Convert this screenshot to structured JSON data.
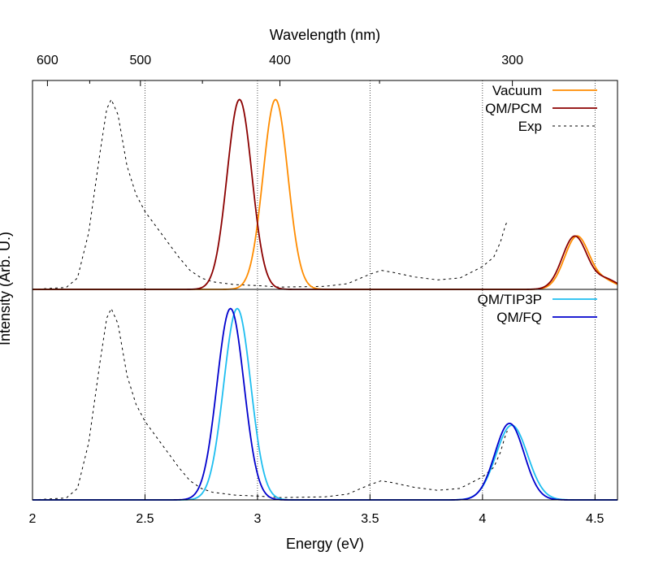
{
  "chart_data": {
    "type": "line",
    "xlabel": "Energy (eV)",
    "x2label": "Wavelength (nm)",
    "ylabel": "Intensity (Arb. U.)",
    "xlim": [
      2.0,
      4.6
    ],
    "x_ticks": [
      2,
      2.5,
      3,
      3.5,
      4,
      4.5
    ],
    "x_tick_labels": [
      "2",
      "2.5",
      "3",
      "3.5",
      "4",
      "4.5"
    ],
    "x2_ticks_nm": [
      600,
      500,
      400,
      300
    ],
    "x2_tick_labels": [
      "600",
      "500",
      "400",
      "300"
    ],
    "x2_minor_ticks_nm": [
      550,
      450,
      350
    ],
    "grid": "x-only, dotted",
    "colors": {
      "vacuum": "#FF8C00",
      "qm_pcm": "#8B0000",
      "exp": "#000000",
      "qm_tip3p": "#1EBEF0",
      "qm_fq": "#0000CD"
    },
    "panels": [
      {
        "legend_position": "top-right",
        "ylim": [
          0,
          1.1
        ],
        "series": [
          {
            "name": "Vacuum",
            "color_key": "vacuum",
            "style": "solid",
            "peaks": [
              {
                "center": 3.08,
                "width": 0.055,
                "height": 1.0
              },
              {
                "center": 4.42,
                "width": 0.055,
                "height": 0.28
              },
              {
                "center": 4.55,
                "width": 0.05,
                "height": 0.04
              }
            ]
          },
          {
            "name": "QM/PCM",
            "color_key": "qm_pcm",
            "style": "solid",
            "peaks": [
              {
                "center": 2.92,
                "width": 0.055,
                "height": 1.0
              },
              {
                "center": 4.41,
                "width": 0.055,
                "height": 0.28
              },
              {
                "center": 4.55,
                "width": 0.05,
                "height": 0.05
              }
            ]
          },
          {
            "name": "Exp",
            "color_key": "exp",
            "style": "dashed",
            "x": [
              2.0,
              2.15,
              2.2,
              2.25,
              2.3,
              2.33,
              2.35,
              2.38,
              2.42,
              2.46,
              2.5,
              2.55,
              2.6,
              2.65,
              2.7,
              2.75,
              2.8,
              2.9,
              3.0,
              3.1,
              3.2,
              3.3,
              3.4,
              3.5,
              3.55,
              3.6,
              3.7,
              3.8,
              3.9,
              4.0,
              4.05,
              4.08,
              4.1,
              4.11
            ],
            "y": [
              0.0,
              0.01,
              0.06,
              0.3,
              0.72,
              0.95,
              1.0,
              0.92,
              0.65,
              0.5,
              0.41,
              0.33,
              0.25,
              0.17,
              0.1,
              0.06,
              0.04,
              0.025,
              0.02,
              0.012,
              0.014,
              0.016,
              0.03,
              0.08,
              0.1,
              0.09,
              0.065,
              0.05,
              0.06,
              0.12,
              0.17,
              0.25,
              0.33,
              0.36
            ]
          }
        ]
      },
      {
        "legend_position": "top-right",
        "ylim": [
          0,
          1.1
        ],
        "series": [
          {
            "name": "QM/TIP3P",
            "color_key": "qm_tip3p",
            "style": "solid",
            "peaks": [
              {
                "center": 2.91,
                "width": 0.06,
                "height": 1.0
              },
              {
                "center": 4.13,
                "width": 0.07,
                "height": 0.39
              }
            ]
          },
          {
            "name": "QM/FQ",
            "color_key": "qm_fq",
            "style": "solid",
            "peaks": [
              {
                "center": 2.88,
                "width": 0.06,
                "height": 1.0
              },
              {
                "center": 4.12,
                "width": 0.065,
                "height": 0.4
              }
            ]
          },
          {
            "name": "",
            "color_key": "exp",
            "style": "dashed",
            "x": [
              2.0,
              2.15,
              2.2,
              2.25,
              2.3,
              2.33,
              2.35,
              2.38,
              2.42,
              2.46,
              2.5,
              2.55,
              2.6,
              2.65,
              2.7,
              2.75,
              2.8,
              2.9,
              3.0,
              3.1,
              3.2,
              3.3,
              3.4,
              3.5,
              3.55,
              3.6,
              3.7,
              3.8,
              3.9,
              4.0,
              4.05,
              4.08,
              4.1,
              4.11
            ],
            "y": [
              0.0,
              0.01,
              0.06,
              0.3,
              0.72,
              0.95,
              1.0,
              0.92,
              0.65,
              0.5,
              0.41,
              0.33,
              0.25,
              0.17,
              0.1,
              0.06,
              0.04,
              0.025,
              0.02,
              0.012,
              0.014,
              0.016,
              0.03,
              0.08,
              0.1,
              0.09,
              0.065,
              0.05,
              0.06,
              0.12,
              0.17,
              0.25,
              0.33,
              0.36
            ]
          }
        ]
      }
    ]
  }
}
